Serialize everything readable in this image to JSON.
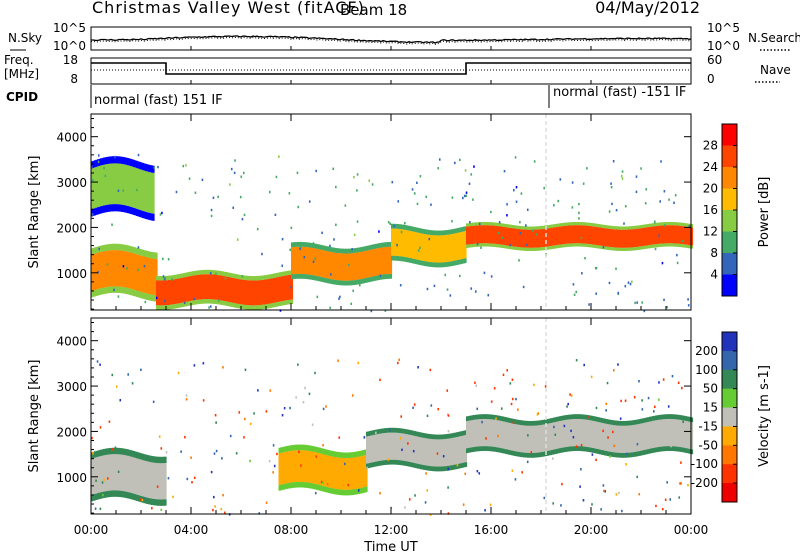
{
  "header": {
    "station": "Christmas Valley West (fitACF)",
    "beam": "Beam 18",
    "date": "04/May/2012"
  },
  "noise_panel": {
    "left_label": "N.Sky",
    "right_label": "N.Search",
    "left_ticks": [
      "10^5",
      "10^0"
    ],
    "right_ticks": [
      "10^5",
      "10^0"
    ]
  },
  "freq_panel": {
    "left_label_1": "Freq.",
    "left_label_2": "[MHz]",
    "right_label": "Nave",
    "left_ticks": [
      "18",
      "8"
    ],
    "right_ticks": [
      "60",
      "0"
    ]
  },
  "cpid_panel": {
    "label": "CPID",
    "segments": [
      {
        "text": "normal (fast) 151 IF",
        "start_hour": 0
      },
      {
        "text": "normal (fast) -151 IF",
        "start_hour": 18.2
      }
    ]
  },
  "power_panel": {
    "ylabel": "Slant Range [km]",
    "colorbar_label": "Power [dB]",
    "colorbar_ticks": [
      "28",
      "24",
      "20",
      "16",
      "12",
      "8",
      "4"
    ],
    "colorbar_colors": [
      "#ff0000",
      "#ff4400",
      "#ff8800",
      "#ffbb00",
      "#88cc44",
      "#44aa66",
      "#3366bb",
      "#0000ff"
    ]
  },
  "velocity_panel": {
    "ylabel": "Slant Range [km]",
    "colorbar_label": "Velocity [m s-1]",
    "colorbar_ticks": [
      "200",
      "100",
      "50",
      "15",
      "-15",
      "-50",
      "-100",
      "-200"
    ],
    "colorbar_colors": [
      "#2233bb",
      "#3366aa",
      "#338855",
      "#66cc33",
      "#c0c0b8",
      "#ffaa00",
      "#ff7700",
      "#ff3300",
      "#ee0000"
    ]
  },
  "x_axis": {
    "label": "Time UT",
    "ticks": [
      "00:00",
      "04:00",
      "08:00",
      "12:00",
      "16:00",
      "20:00",
      "00:00"
    ]
  },
  "chart_data": {
    "type": "heatmap",
    "title": "Christmas Valley West (fitACF) Beam 18 04/May/2012",
    "xlabel": "Time UT",
    "ylabel": "Slant Range [km]",
    "xlim": [
      0,
      24
    ],
    "ylim": [
      180,
      4500
    ],
    "yticks": [
      1000,
      2000,
      3000,
      4000
    ],
    "grid": false,
    "series": [
      {
        "name": "Power [dB]",
        "colorbar_range": [
          0,
          32
        ],
        "bands": [
          {
            "start_hour": 0.0,
            "end_hour": 2.6,
            "min_range_km": 600,
            "max_range_km": 1400,
            "value": 24
          },
          {
            "start_hour": 2.6,
            "end_hour": 8.0,
            "min_range_km": 350,
            "max_range_km": 900,
            "value": 26
          },
          {
            "start_hour": 8.0,
            "end_hour": 12.0,
            "min_range_km": 900,
            "max_range_km": 1500,
            "value": 22
          },
          {
            "start_hour": 12.0,
            "end_hour": 15.0,
            "min_range_km": 1300,
            "max_range_km": 1900,
            "value": 20
          },
          {
            "start_hour": 15.0,
            "end_hour": 24.0,
            "min_range_km": 1600,
            "max_range_km": 2000,
            "value": 28
          },
          {
            "start_hour": 0.0,
            "end_hour": 2.5,
            "min_range_km": 2400,
            "max_range_km": 3300,
            "value": 12
          }
        ]
      },
      {
        "name": "Velocity [m s-1]",
        "colorbar_range": [
          -250,
          250
        ],
        "bands": [
          {
            "start_hour": 0.0,
            "end_hour": 3.0,
            "min_range_km": 600,
            "max_range_km": 1400,
            "value": -10
          },
          {
            "start_hour": 7.5,
            "end_hour": 11.0,
            "min_range_km": 800,
            "max_range_km": 1500,
            "value": -40
          },
          {
            "start_hour": 11.0,
            "end_hour": 15.0,
            "min_range_km": 1300,
            "max_range_km": 1900,
            "value": 5
          },
          {
            "start_hour": 15.0,
            "end_hour": 24.0,
            "min_range_km": 1600,
            "max_range_km": 2200,
            "value": 0
          }
        ]
      }
    ]
  }
}
